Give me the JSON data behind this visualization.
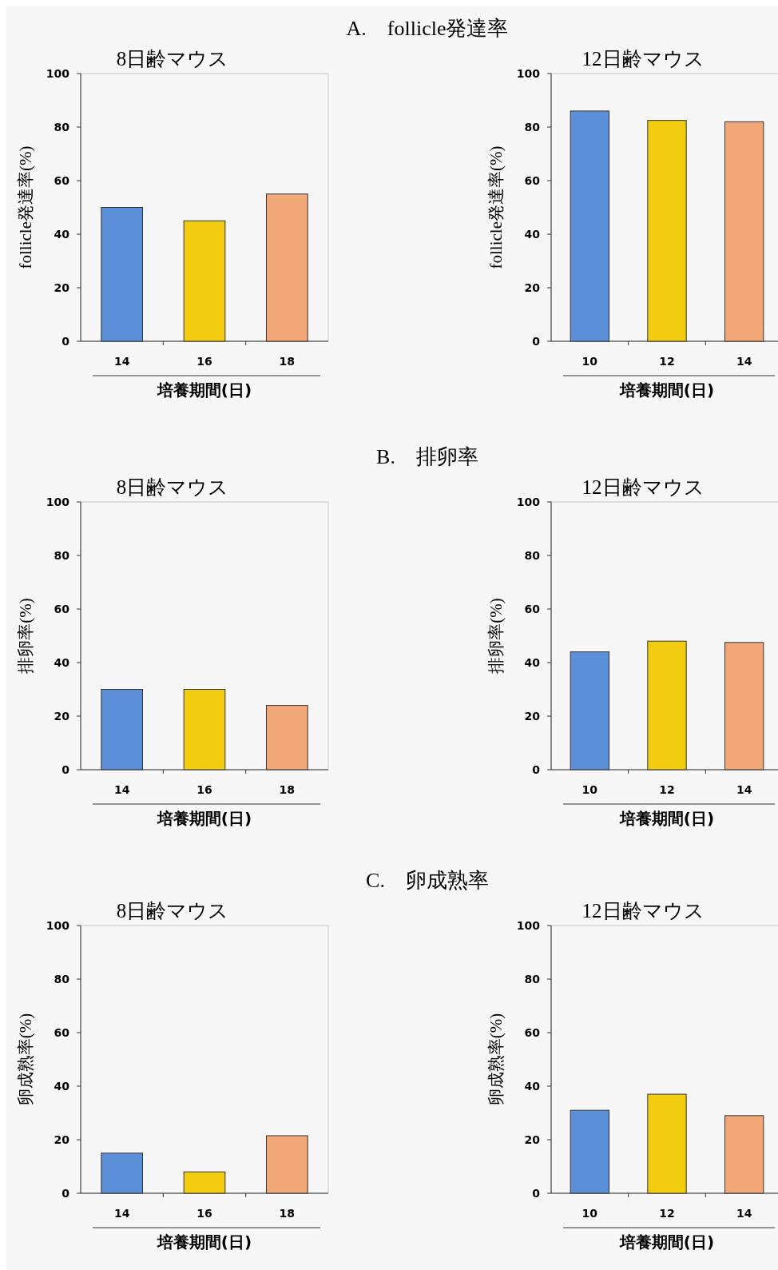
{
  "chart_data": [
    {
      "type": "bar",
      "annotations": [
        "A.　follicle発達率"
      ],
      "title": "8日齢マウス",
      "categories": [
        "14",
        "16",
        "18"
      ],
      "values": [
        50,
        45,
        55
      ],
      "colors": [
        "#5b8fd8",
        "#f2cc10",
        "#f2a878"
      ],
      "xlabel": "培養期間(日)",
      "ylabel": "follicle発達率(%)",
      "ylim": [
        0,
        100
      ],
      "yticks": [
        0,
        20,
        40,
        60,
        80,
        100
      ]
    },
    {
      "type": "bar",
      "title": "12日齢マウス",
      "categories": [
        "10",
        "12",
        "14"
      ],
      "values": [
        86,
        82.5,
        82
      ],
      "colors": [
        "#5b8fd8",
        "#f2cc10",
        "#f2a878"
      ],
      "xlabel": "培養期間(日)",
      "ylabel": "follicle発達率(%)",
      "ylim": [
        0,
        100
      ],
      "yticks": [
        0,
        20,
        40,
        60,
        80,
        100
      ]
    },
    {
      "type": "bar",
      "annotations": [
        "B.　排卵率"
      ],
      "title": "8日齢マウス",
      "categories": [
        "14",
        "16",
        "18"
      ],
      "values": [
        30,
        30,
        24
      ],
      "colors": [
        "#5b8fd8",
        "#f2cc10",
        "#f2a878"
      ],
      "xlabel": "培養期間(日)",
      "ylabel": "排卵率(%)",
      "ylim": [
        0,
        100
      ],
      "yticks": [
        0,
        20,
        40,
        60,
        80,
        100
      ]
    },
    {
      "type": "bar",
      "title": "12日齢マウス",
      "categories": [
        "10",
        "12",
        "14"
      ],
      "values": [
        44,
        48,
        47.5
      ],
      "colors": [
        "#5b8fd8",
        "#f2cc10",
        "#f2a878"
      ],
      "xlabel": "培養期間(日)",
      "ylabel": "排卵率(%)",
      "ylim": [
        0,
        100
      ],
      "yticks": [
        0,
        20,
        40,
        60,
        80,
        100
      ]
    },
    {
      "type": "bar",
      "annotations": [
        "C.　卵成熟率"
      ],
      "title": "8日齢マウス",
      "categories": [
        "14",
        "16",
        "18"
      ],
      "values": [
        15,
        8,
        21.5
      ],
      "colors": [
        "#5b8fd8",
        "#f2cc10",
        "#f2a878"
      ],
      "xlabel": "培養期間(日)",
      "ylabel": "卵成熟率(%)",
      "ylim": [
        0,
        100
      ],
      "yticks": [
        0,
        20,
        40,
        60,
        80,
        100
      ]
    },
    {
      "type": "bar",
      "title": "12日齢マウス",
      "categories": [
        "10",
        "12",
        "14"
      ],
      "values": [
        31,
        37,
        29
      ],
      "colors": [
        "#5b8fd8",
        "#f2cc10",
        "#f2a878"
      ],
      "xlabel": "培養期間(日)",
      "ylabel": "卵成熟率(%)",
      "ylim": [
        0,
        100
      ],
      "yticks": [
        0,
        20,
        40,
        60,
        80,
        100
      ]
    }
  ]
}
